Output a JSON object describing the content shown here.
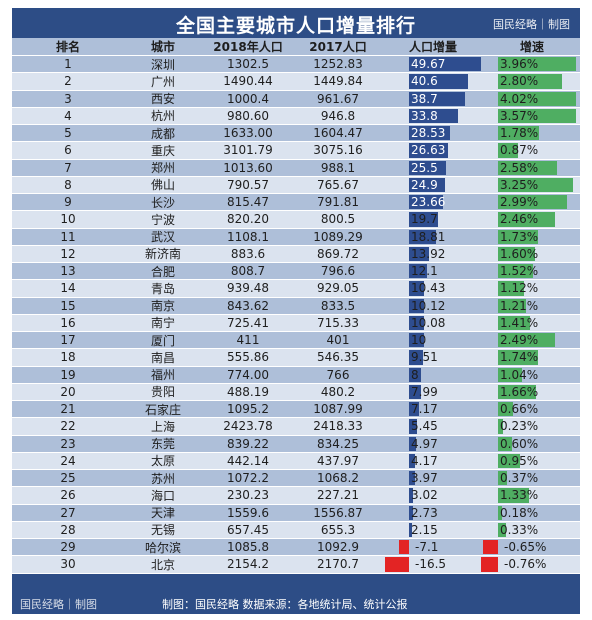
{
  "title": "全国主要城市人口增量排行",
  "brand_top": "国民经略｜制图",
  "headers": [
    "排名",
    "城市",
    "2018年人口",
    "2017人口",
    "人口增量",
    "增速"
  ],
  "footer_brand": "国民经略｜制图",
  "footer_source": "制图：国民经略  数据来源：各地统计局、统计公报",
  "colors": {
    "header": "#2d4d86",
    "increase_bar": "#2e4d8f",
    "decrease_bar": "#e32424",
    "growth_bar": "#4fae62"
  },
  "rows": [
    {
      "rank": "1",
      "city": "深圳",
      "p2018": "1302.5",
      "p2017": "1252.83",
      "inc": "49.67",
      "grw": "3.96%",
      "inc_v": 49.67,
      "grw_v": 3.96
    },
    {
      "rank": "2",
      "city": "广州",
      "p2018": "1490.44",
      "p2017": "1449.84",
      "inc": "40.6",
      "grw": "2.80%",
      "inc_v": 40.6,
      "grw_v": 2.8
    },
    {
      "rank": "3",
      "city": "西安",
      "p2018": "1000.4",
      "p2017": "961.67",
      "inc": "38.7",
      "grw": "4.02%",
      "inc_v": 38.7,
      "grw_v": 4.02
    },
    {
      "rank": "4",
      "city": "杭州",
      "p2018": "980.60",
      "p2017": "946.8",
      "inc": "33.8",
      "grw": "3.57%",
      "inc_v": 33.8,
      "grw_v": 3.57
    },
    {
      "rank": "5",
      "city": "成都",
      "p2018": "1633.00",
      "p2017": "1604.47",
      "inc": "28.53",
      "grw": "1.78%",
      "inc_v": 28.53,
      "grw_v": 1.78
    },
    {
      "rank": "6",
      "city": "重庆",
      "p2018": "3101.79",
      "p2017": "3075.16",
      "inc": "26.63",
      "grw": "0.87%",
      "inc_v": 26.63,
      "grw_v": 0.87
    },
    {
      "rank": "7",
      "city": "郑州",
      "p2018": "1013.60",
      "p2017": "988.1",
      "inc": "25.5",
      "grw": "2.58%",
      "inc_v": 25.5,
      "grw_v": 2.58
    },
    {
      "rank": "8",
      "city": "佛山",
      "p2018": "790.57",
      "p2017": "765.67",
      "inc": "24.9",
      "grw": "3.25%",
      "inc_v": 24.9,
      "grw_v": 3.25
    },
    {
      "rank": "9",
      "city": "长沙",
      "p2018": "815.47",
      "p2017": "791.81",
      "inc": "23.66",
      "grw": "2.99%",
      "inc_v": 23.66,
      "grw_v": 2.99
    },
    {
      "rank": "10",
      "city": "宁波",
      "p2018": "820.20",
      "p2017": "800.5",
      "inc": "19.7",
      "grw": "2.46%",
      "inc_v": 19.7,
      "grw_v": 2.46
    },
    {
      "rank": "11",
      "city": "武汉",
      "p2018": "1108.1",
      "p2017": "1089.29",
      "inc": "18.81",
      "grw": "1.73%",
      "inc_v": 18.81,
      "grw_v": 1.73
    },
    {
      "rank": "12",
      "city": "新济南",
      "p2018": "883.6",
      "p2017": "869.72",
      "inc": "13.92",
      "grw": "1.60%",
      "inc_v": 13.92,
      "grw_v": 1.6
    },
    {
      "rank": "13",
      "city": "合肥",
      "p2018": "808.7",
      "p2017": "796.6",
      "inc": "12.1",
      "grw": "1.52%",
      "inc_v": 12.1,
      "grw_v": 1.52
    },
    {
      "rank": "14",
      "city": "青岛",
      "p2018": "939.48",
      "p2017": "929.05",
      "inc": "10.43",
      "grw": "1.12%",
      "inc_v": 10.43,
      "grw_v": 1.12
    },
    {
      "rank": "15",
      "city": "南京",
      "p2018": "843.62",
      "p2017": "833.5",
      "inc": "10.12",
      "grw": "1.21%",
      "inc_v": 10.12,
      "grw_v": 1.21
    },
    {
      "rank": "16",
      "city": "南宁",
      "p2018": "725.41",
      "p2017": "715.33",
      "inc": "10.08",
      "grw": "1.41%",
      "inc_v": 10.08,
      "grw_v": 1.41
    },
    {
      "rank": "17",
      "city": "厦门",
      "p2018": "411",
      "p2017": "401",
      "inc": "10",
      "grw": "2.49%",
      "inc_v": 10,
      "grw_v": 2.49
    },
    {
      "rank": "18",
      "city": "南昌",
      "p2018": "555.86",
      "p2017": "546.35",
      "inc": "9.51",
      "grw": "1.74%",
      "inc_v": 9.51,
      "grw_v": 1.74
    },
    {
      "rank": "19",
      "city": "福州",
      "p2018": "774.00",
      "p2017": "766",
      "inc": "8",
      "grw": "1.04%",
      "inc_v": 8,
      "grw_v": 1.04
    },
    {
      "rank": "20",
      "city": "贵阳",
      "p2018": "488.19",
      "p2017": "480.2",
      "inc": "7.99",
      "grw": "1.66%",
      "inc_v": 7.99,
      "grw_v": 1.66
    },
    {
      "rank": "21",
      "city": "石家庄",
      "p2018": "1095.2",
      "p2017": "1087.99",
      "inc": "7.17",
      "grw": "0.66%",
      "inc_v": 7.17,
      "grw_v": 0.66
    },
    {
      "rank": "22",
      "city": "上海",
      "p2018": "2423.78",
      "p2017": "2418.33",
      "inc": "5.45",
      "grw": "0.23%",
      "inc_v": 5.45,
      "grw_v": 0.23
    },
    {
      "rank": "23",
      "city": "东莞",
      "p2018": "839.22",
      "p2017": "834.25",
      "inc": "4.97",
      "grw": "0.60%",
      "inc_v": 4.97,
      "grw_v": 0.6
    },
    {
      "rank": "24",
      "city": "太原",
      "p2018": "442.14",
      "p2017": "437.97",
      "inc": "4.17",
      "grw": "0.95%",
      "inc_v": 4.17,
      "grw_v": 0.95
    },
    {
      "rank": "25",
      "city": "苏州",
      "p2018": "1072.2",
      "p2017": "1068.2",
      "inc": "3.97",
      "grw": "0.37%",
      "inc_v": 3.97,
      "grw_v": 0.37
    },
    {
      "rank": "26",
      "city": "海口",
      "p2018": "230.23",
      "p2017": "227.21",
      "inc": "3.02",
      "grw": "1.33%",
      "inc_v": 3.02,
      "grw_v": 1.33
    },
    {
      "rank": "27",
      "city": "天津",
      "p2018": "1559.6",
      "p2017": "1556.87",
      "inc": "2.73",
      "grw": "0.18%",
      "inc_v": 2.73,
      "grw_v": 0.18
    },
    {
      "rank": "28",
      "city": "无锡",
      "p2018": "657.45",
      "p2017": "655.3",
      "inc": "2.15",
      "grw": "0.33%",
      "inc_v": 2.15,
      "grw_v": 0.33
    },
    {
      "rank": "29",
      "city": "哈尔滨",
      "p2018": "1085.8",
      "p2017": "1092.9",
      "inc": "-7.1",
      "grw": "-0.65%",
      "inc_v": -7.1,
      "grw_v": -0.65
    },
    {
      "rank": "30",
      "city": "北京",
      "p2018": "2154.2",
      "p2017": "2170.7",
      "inc": "-16.5",
      "grw": "-0.76%",
      "inc_v": -16.5,
      "grw_v": -0.76
    }
  ]
}
